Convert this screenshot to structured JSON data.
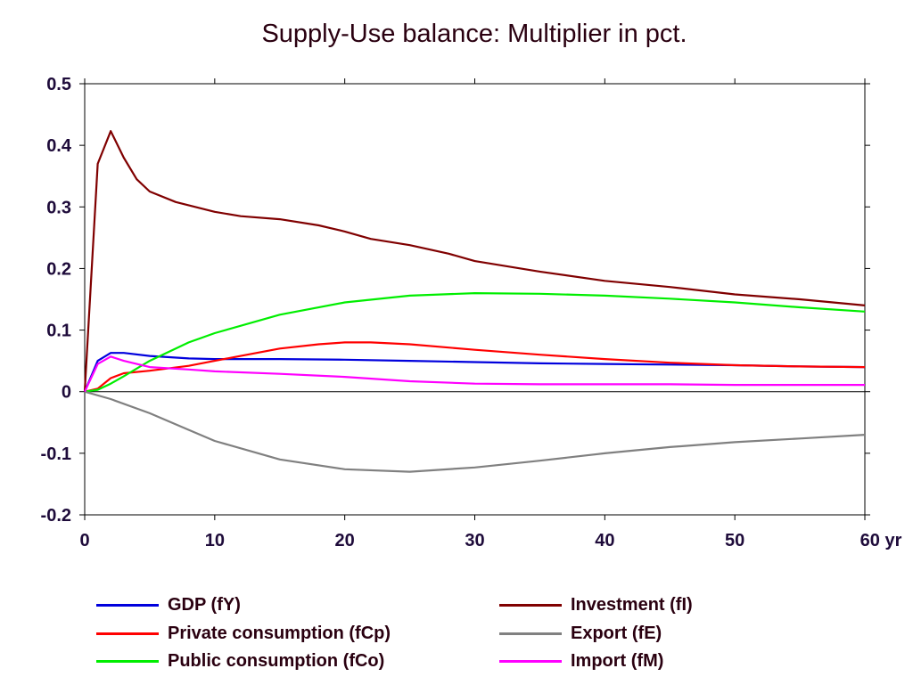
{
  "chart_data": {
    "type": "line",
    "title": "Supply-Use balance: Multiplier in pct.",
    "xlabel": "",
    "ylabel": "",
    "xlim": [
      0,
      60
    ],
    "ylim": [
      -0.2,
      0.5
    ],
    "x_ticks": [
      "0",
      "10",
      "20",
      "30",
      "40",
      "50",
      "60 yr"
    ],
    "y_ticks": [
      "0.5",
      "0.4",
      "0.3",
      "0.2",
      "0.1",
      "0",
      "-0.1",
      "-0.2"
    ],
    "grid": false,
    "legend_position": "bottom",
    "series": [
      {
        "name": "GDP (fY)",
        "color": "#0000dd",
        "x": [
          0,
          1,
          2,
          3,
          5,
          8,
          10,
          15,
          20,
          25,
          30,
          35,
          40,
          45,
          50,
          55,
          60
        ],
        "y": [
          0,
          0.05,
          0.063,
          0.063,
          0.058,
          0.054,
          0.053,
          0.053,
          0.052,
          0.05,
          0.048,
          0.046,
          0.045,
          0.044,
          0.043,
          0.041,
          0.04
        ]
      },
      {
        "name": "Private consumption (fCp)",
        "color": "#ff0000",
        "x": [
          0,
          1,
          2,
          3,
          5,
          8,
          10,
          12,
          15,
          18,
          20,
          22,
          25,
          30,
          35,
          40,
          45,
          50,
          55,
          60
        ],
        "y": [
          0,
          0.005,
          0.022,
          0.03,
          0.034,
          0.042,
          0.05,
          0.058,
          0.07,
          0.077,
          0.08,
          0.08,
          0.077,
          0.068,
          0.06,
          0.053,
          0.047,
          0.043,
          0.041,
          0.04
        ]
      },
      {
        "name": "Public consumption (fCo)",
        "color": "#00ee00",
        "x": [
          0,
          1,
          2,
          3,
          5,
          8,
          10,
          15,
          20,
          25,
          30,
          35,
          40,
          45,
          50,
          55,
          60
        ],
        "y": [
          0,
          0.003,
          0.013,
          0.025,
          0.05,
          0.08,
          0.095,
          0.125,
          0.145,
          0.156,
          0.16,
          0.159,
          0.156,
          0.151,
          0.145,
          0.137,
          0.13
        ]
      },
      {
        "name": "Investment (fI)",
        "color": "#800000",
        "x": [
          0,
          1,
          2,
          3,
          4,
          5,
          7,
          10,
          12,
          15,
          18,
          20,
          22,
          25,
          28,
          30,
          35,
          40,
          45,
          50,
          55,
          60
        ],
        "y": [
          0,
          0.37,
          0.423,
          0.38,
          0.345,
          0.325,
          0.308,
          0.292,
          0.285,
          0.28,
          0.27,
          0.26,
          0.248,
          0.238,
          0.224,
          0.212,
          0.195,
          0.18,
          0.17,
          0.158,
          0.15,
          0.14
        ]
      },
      {
        "name": "Export (fE)",
        "color": "#808080",
        "x": [
          0,
          2,
          5,
          8,
          10,
          15,
          20,
          25,
          30,
          35,
          40,
          45,
          50,
          55,
          60
        ],
        "y": [
          0,
          -0.012,
          -0.035,
          -0.062,
          -0.08,
          -0.11,
          -0.126,
          -0.13,
          -0.123,
          -0.112,
          -0.1,
          -0.09,
          -0.082,
          -0.076,
          -0.07
        ]
      },
      {
        "name": "Import (fM)",
        "color": "#ff00ff",
        "x": [
          0,
          1,
          2,
          3,
          5,
          8,
          10,
          15,
          20,
          25,
          30,
          35,
          40,
          45,
          50,
          55,
          60
        ],
        "y": [
          0,
          0.045,
          0.057,
          0.05,
          0.04,
          0.036,
          0.033,
          0.029,
          0.024,
          0.017,
          0.013,
          0.012,
          0.012,
          0.012,
          0.011,
          0.011,
          0.011
        ]
      }
    ]
  }
}
